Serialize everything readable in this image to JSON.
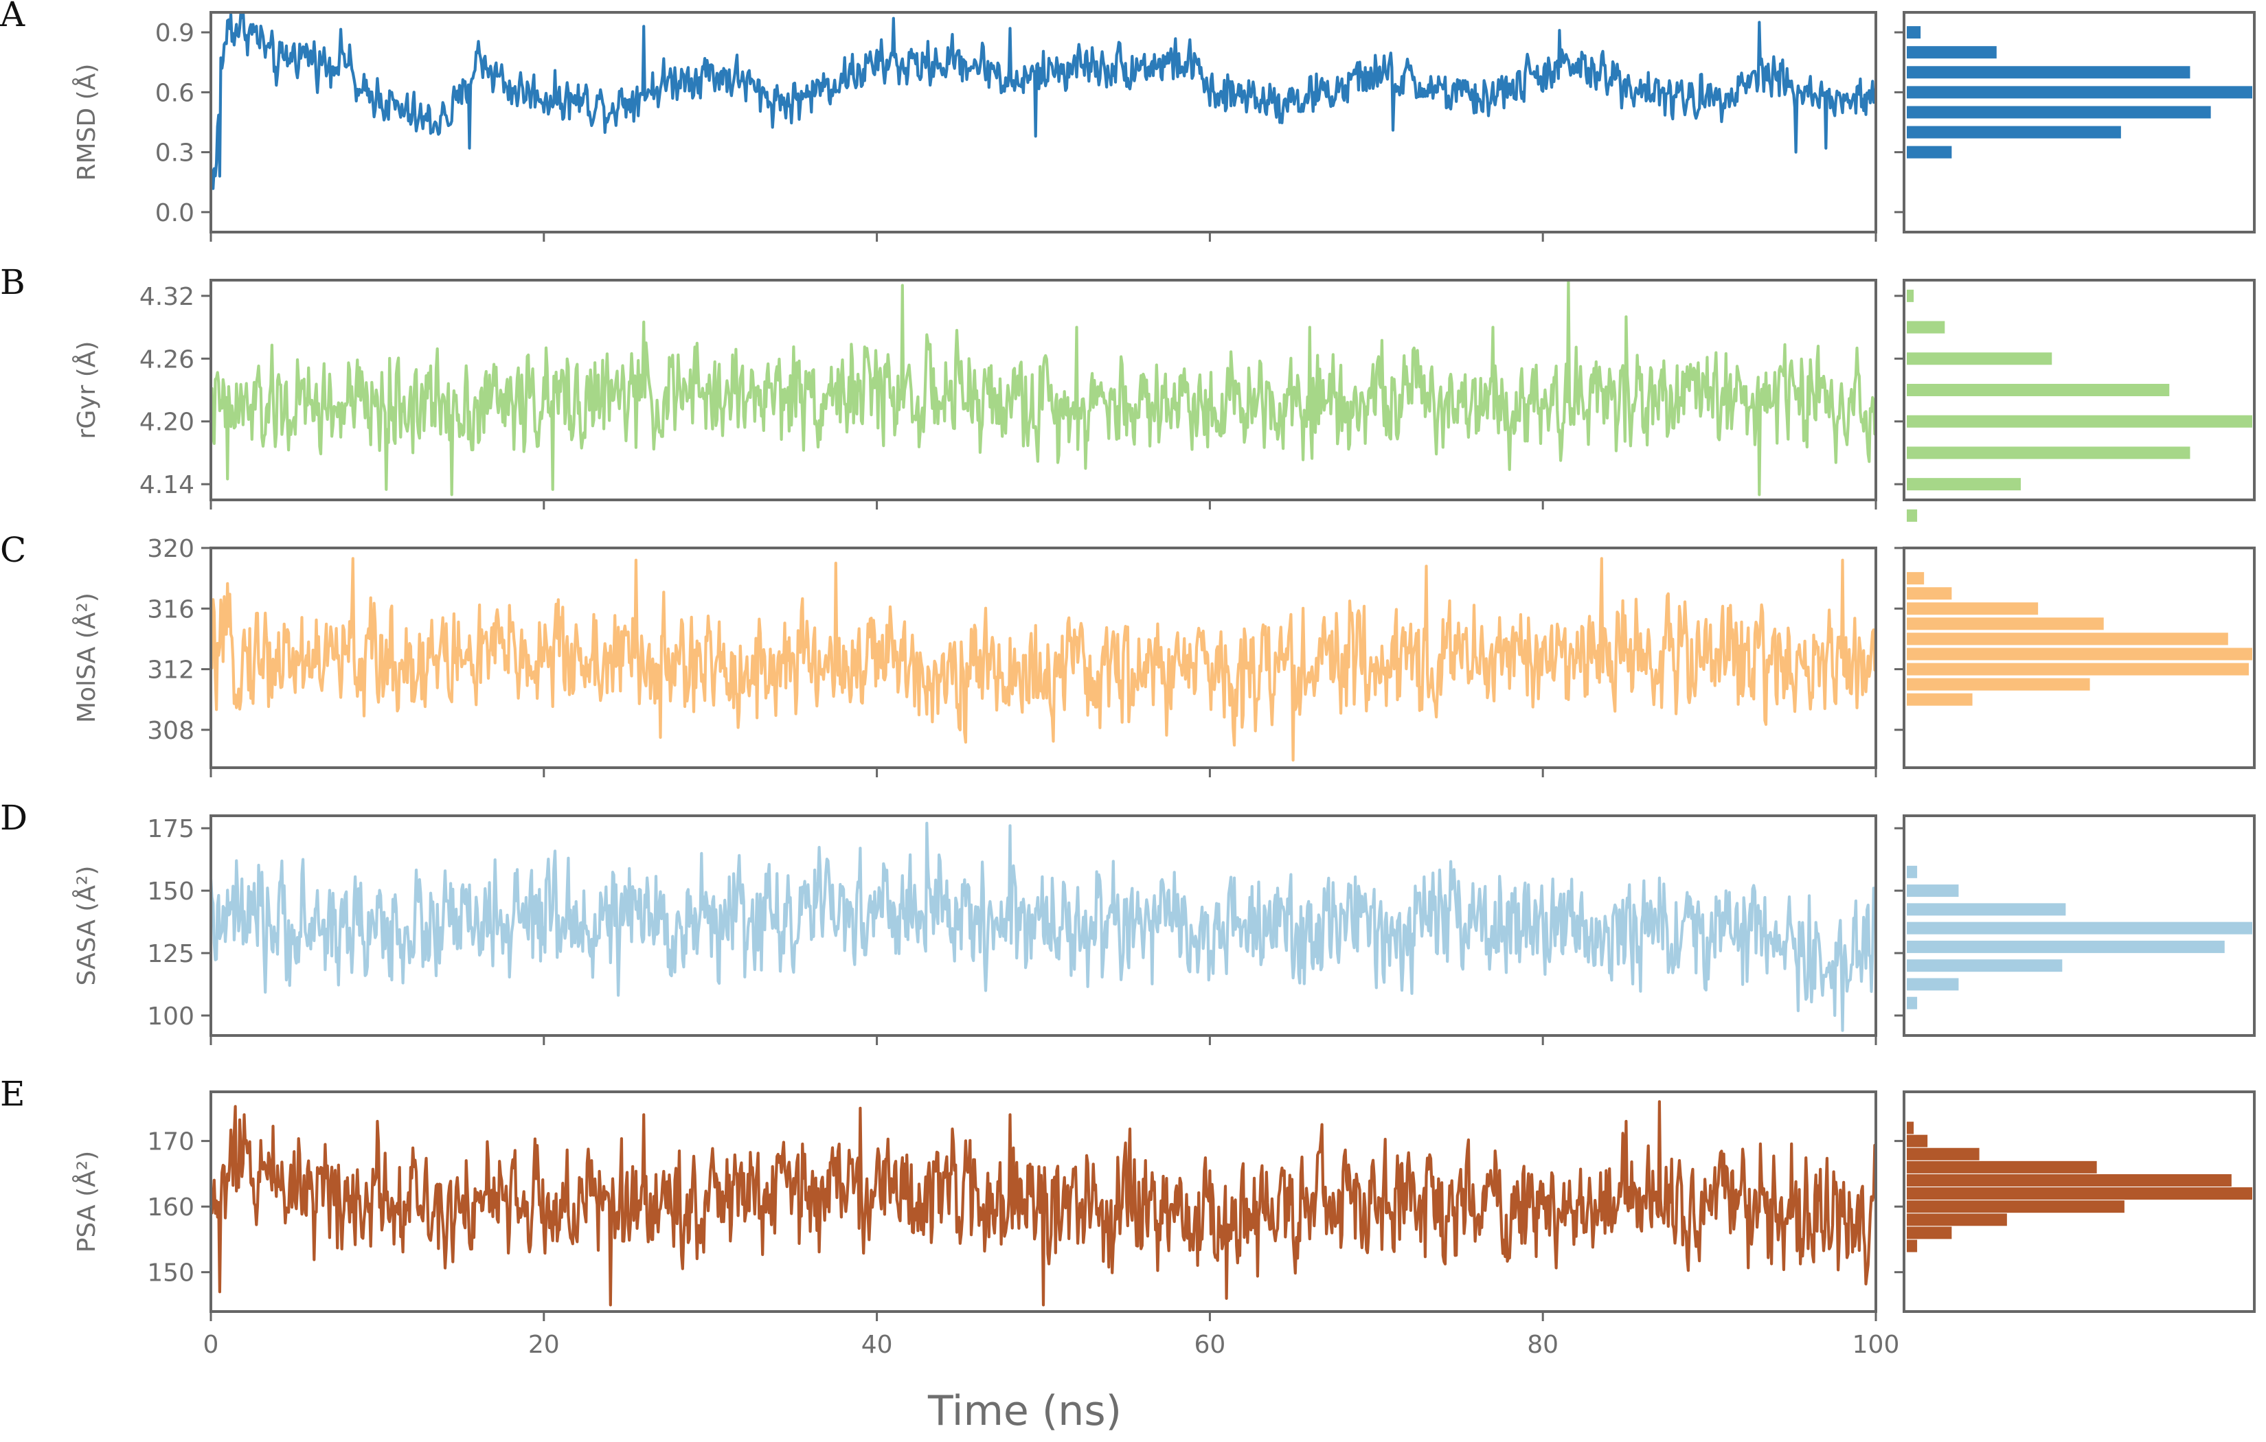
{
  "chart_data": {
    "type": "line",
    "xlabel": "Time (ns)",
    "xlim": [
      0,
      100
    ],
    "xticks": [
      "0",
      "20",
      "40",
      "60",
      "80",
      "100"
    ],
    "panels": [
      {
        "letter": "A",
        "ylabel": "RMSD (Å)",
        "color": "#2b7bb9",
        "ylim": [
          -0.1,
          1.0
        ],
        "yticks": [
          0.0,
          0.3,
          0.6,
          0.9
        ],
        "ytick_labels": [
          "0.0",
          "0.3",
          "0.6",
          "0.9"
        ],
        "profile": [
          [
            0,
            0.2
          ],
          [
            0.3,
            0.2
          ],
          [
            0.6,
            0.72
          ],
          [
            1,
            0.92
          ],
          [
            2,
            0.93
          ],
          [
            3,
            0.86
          ],
          [
            4,
            0.72
          ],
          [
            5,
            0.8
          ],
          [
            6,
            0.78
          ],
          [
            7,
            0.74
          ],
          [
            8,
            0.8
          ],
          [
            9,
            0.56
          ],
          [
            10,
            0.6
          ],
          [
            11,
            0.52
          ],
          [
            12,
            0.48
          ],
          [
            13,
            0.45
          ],
          [
            14,
            0.47
          ],
          [
            15,
            0.55
          ],
          [
            16,
            0.78
          ],
          [
            18,
            0.62
          ],
          [
            20,
            0.58
          ],
          [
            22,
            0.56
          ],
          [
            24,
            0.53
          ],
          [
            26,
            0.6
          ],
          [
            28,
            0.67
          ],
          [
            30,
            0.7
          ],
          [
            32,
            0.66
          ],
          [
            33,
            0.58
          ],
          [
            35,
            0.55
          ],
          [
            37,
            0.64
          ],
          [
            40,
            0.74
          ],
          [
            42,
            0.73
          ],
          [
            45,
            0.76
          ],
          [
            47,
            0.72
          ],
          [
            48,
            0.64
          ],
          [
            50,
            0.7
          ],
          [
            52,
            0.74
          ],
          [
            55,
            0.73
          ],
          [
            58,
            0.75
          ],
          [
            59.5,
            0.72
          ],
          [
            60,
            0.55
          ],
          [
            62,
            0.6
          ],
          [
            64,
            0.56
          ],
          [
            66,
            0.58
          ],
          [
            68,
            0.62
          ],
          [
            70,
            0.7
          ],
          [
            72,
            0.65
          ],
          [
            74,
            0.6
          ],
          [
            76,
            0.56
          ],
          [
            78,
            0.62
          ],
          [
            80,
            0.7
          ],
          [
            82,
            0.72
          ],
          [
            84,
            0.68
          ],
          [
            86,
            0.62
          ],
          [
            88,
            0.56
          ],
          [
            90,
            0.58
          ],
          [
            92,
            0.64
          ],
          [
            94,
            0.72
          ],
          [
            95,
            0.62
          ],
          [
            96,
            0.58
          ],
          [
            98,
            0.55
          ],
          [
            100,
            0.57
          ]
        ],
        "noise": 0.05,
        "spikes": [
          [
            1.2,
            0.99
          ],
          [
            0.5,
            0.18
          ],
          [
            15.5,
            0.32
          ],
          [
            26,
            0.93
          ],
          [
            41,
            0.97
          ],
          [
            48,
            0.92
          ],
          [
            49.5,
            0.38
          ],
          [
            71,
            0.41
          ],
          [
            81,
            0.91
          ],
          [
            93,
            0.95
          ],
          [
            95.2,
            0.3
          ],
          [
            97,
            0.32
          ]
        ],
        "hist_bins": [
          0.9,
          0.8,
          0.7,
          0.6,
          0.5,
          0.4,
          0.3
        ],
        "hist_values": [
          4,
          26,
          82,
          100,
          88,
          62,
          13
        ]
      },
      {
        "letter": "B",
        "ylabel": "rGyr (Å)",
        "color": "#a6d788",
        "ylim": [
          4.125,
          4.335
        ],
        "yticks": [
          4.14,
          4.2,
          4.26,
          4.32
        ],
        "ytick_labels": [
          "4.14",
          "4.20",
          "4.26",
          "4.32"
        ],
        "profile": [
          [
            0,
            4.21
          ],
          [
            10,
            4.215
          ],
          [
            20,
            4.22
          ],
          [
            30,
            4.225
          ],
          [
            40,
            4.23
          ],
          [
            50,
            4.215
          ],
          [
            60,
            4.22
          ],
          [
            70,
            4.225
          ],
          [
            80,
            4.22
          ],
          [
            90,
            4.225
          ],
          [
            100,
            4.22
          ]
        ],
        "noise": 0.021,
        "spikes": [
          [
            1,
            4.145
          ],
          [
            10.5,
            4.135
          ],
          [
            14.5,
            4.13
          ],
          [
            20.5,
            4.135
          ],
          [
            26,
            4.295
          ],
          [
            41.5,
            4.33
          ],
          [
            52,
            4.29
          ],
          [
            66,
            4.29
          ],
          [
            77,
            4.29
          ],
          [
            81.5,
            4.335
          ],
          [
            85,
            4.3
          ],
          [
            93,
            4.13
          ]
        ],
        "hist_bins": [
          4.32,
          4.29,
          4.26,
          4.23,
          4.2,
          4.17,
          4.14,
          4.11
        ],
        "hist_values": [
          2,
          11,
          42,
          76,
          100,
          82,
          33,
          3
        ]
      },
      {
        "letter": "C",
        "ylabel": "MolSA (Å²)",
        "color": "#fbbf7a",
        "ylim": [
          305.5,
          320.0
        ],
        "yticks": [
          308,
          312,
          316,
          320
        ],
        "ytick_labels": [
          "308",
          "312",
          "316",
          "320"
        ],
        "profile": [
          [
            0,
            313
          ],
          [
            10,
            312.5
          ],
          [
            20,
            313
          ],
          [
            30,
            312
          ],
          [
            40,
            312.5
          ],
          [
            50,
            311.5
          ],
          [
            60,
            312
          ],
          [
            70,
            312.5
          ],
          [
            80,
            313
          ],
          [
            90,
            313
          ],
          [
            100,
            312.5
          ]
        ],
        "noise": 1.6,
        "spikes": [
          [
            8.5,
            319.3
          ],
          [
            25.5,
            319.2
          ],
          [
            37.5,
            319
          ],
          [
            65,
            306
          ],
          [
            73,
            318.8
          ],
          [
            83.5,
            319.3
          ],
          [
            98,
            319.2
          ],
          [
            27,
            307.5
          ]
        ],
        "hist_bins": [
          318,
          317,
          316,
          315,
          314,
          313,
          312,
          311,
          310,
          309
        ],
        "hist_values": [
          5,
          13,
          38,
          57,
          93,
          100,
          99,
          53,
          19,
          0
        ]
      },
      {
        "letter": "D",
        "ylabel": "SASA (Å²)",
        "color": "#a6cde2",
        "ylim": [
          92,
          180
        ],
        "yticks": [
          100,
          125,
          150,
          175
        ],
        "ytick_labels": [
          "100",
          "125",
          "150",
          "175"
        ],
        "profile": [
          [
            0,
            136
          ],
          [
            10,
            135
          ],
          [
            20,
            137
          ],
          [
            30,
            138
          ],
          [
            40,
            142
          ],
          [
            50,
            138
          ],
          [
            60,
            133
          ],
          [
            70,
            136
          ],
          [
            80,
            135
          ],
          [
            90,
            134
          ],
          [
            95,
            130
          ],
          [
            97,
            118
          ],
          [
            100,
            138
          ]
        ],
        "noise": 10,
        "spikes": [
          [
            1.5,
            162
          ],
          [
            43,
            177
          ],
          [
            48,
            176
          ],
          [
            98,
            94
          ],
          [
            97.5,
            100
          ]
        ],
        "hist_bins": [
          157.5,
          150,
          142.5,
          135,
          127.5,
          120,
          112.5,
          105
        ],
        "hist_values": [
          3,
          15,
          46,
          100,
          92,
          45,
          15,
          3
        ]
      },
      {
        "letter": "E",
        "ylabel": "PSA (Å²)",
        "color": "#b2582a",
        "ylim": [
          144,
          177.5
        ],
        "yticks": [
          150,
          160,
          170
        ],
        "ytick_labels": [
          "150",
          "160",
          "170"
        ],
        "profile": [
          [
            0,
            158
          ],
          [
            1,
            165
          ],
          [
            3,
            166
          ],
          [
            6,
            163
          ],
          [
            10,
            162
          ],
          [
            20,
            160
          ],
          [
            30,
            161
          ],
          [
            40,
            163
          ],
          [
            50,
            160
          ],
          [
            60,
            158
          ],
          [
            70,
            161
          ],
          [
            80,
            160
          ],
          [
            90,
            161
          ],
          [
            100,
            158
          ]
        ],
        "noise": 3.8,
        "spikes": [
          [
            0.5,
            147
          ],
          [
            2,
            174
          ],
          [
            10,
            173
          ],
          [
            24,
            145
          ],
          [
            26,
            174
          ],
          [
            39,
            175
          ],
          [
            48,
            174
          ],
          [
            50,
            145
          ],
          [
            61,
            146
          ],
          [
            87,
            176
          ],
          [
            85,
            173
          ]
        ],
        "hist_bins": [
          172,
          170,
          168,
          166,
          164,
          162,
          160,
          158,
          156,
          154,
          152,
          150
        ],
        "hist_values": [
          2,
          6,
          21,
          55,
          94,
          100,
          63,
          29,
          13,
          3,
          0,
          0
        ]
      }
    ]
  }
}
